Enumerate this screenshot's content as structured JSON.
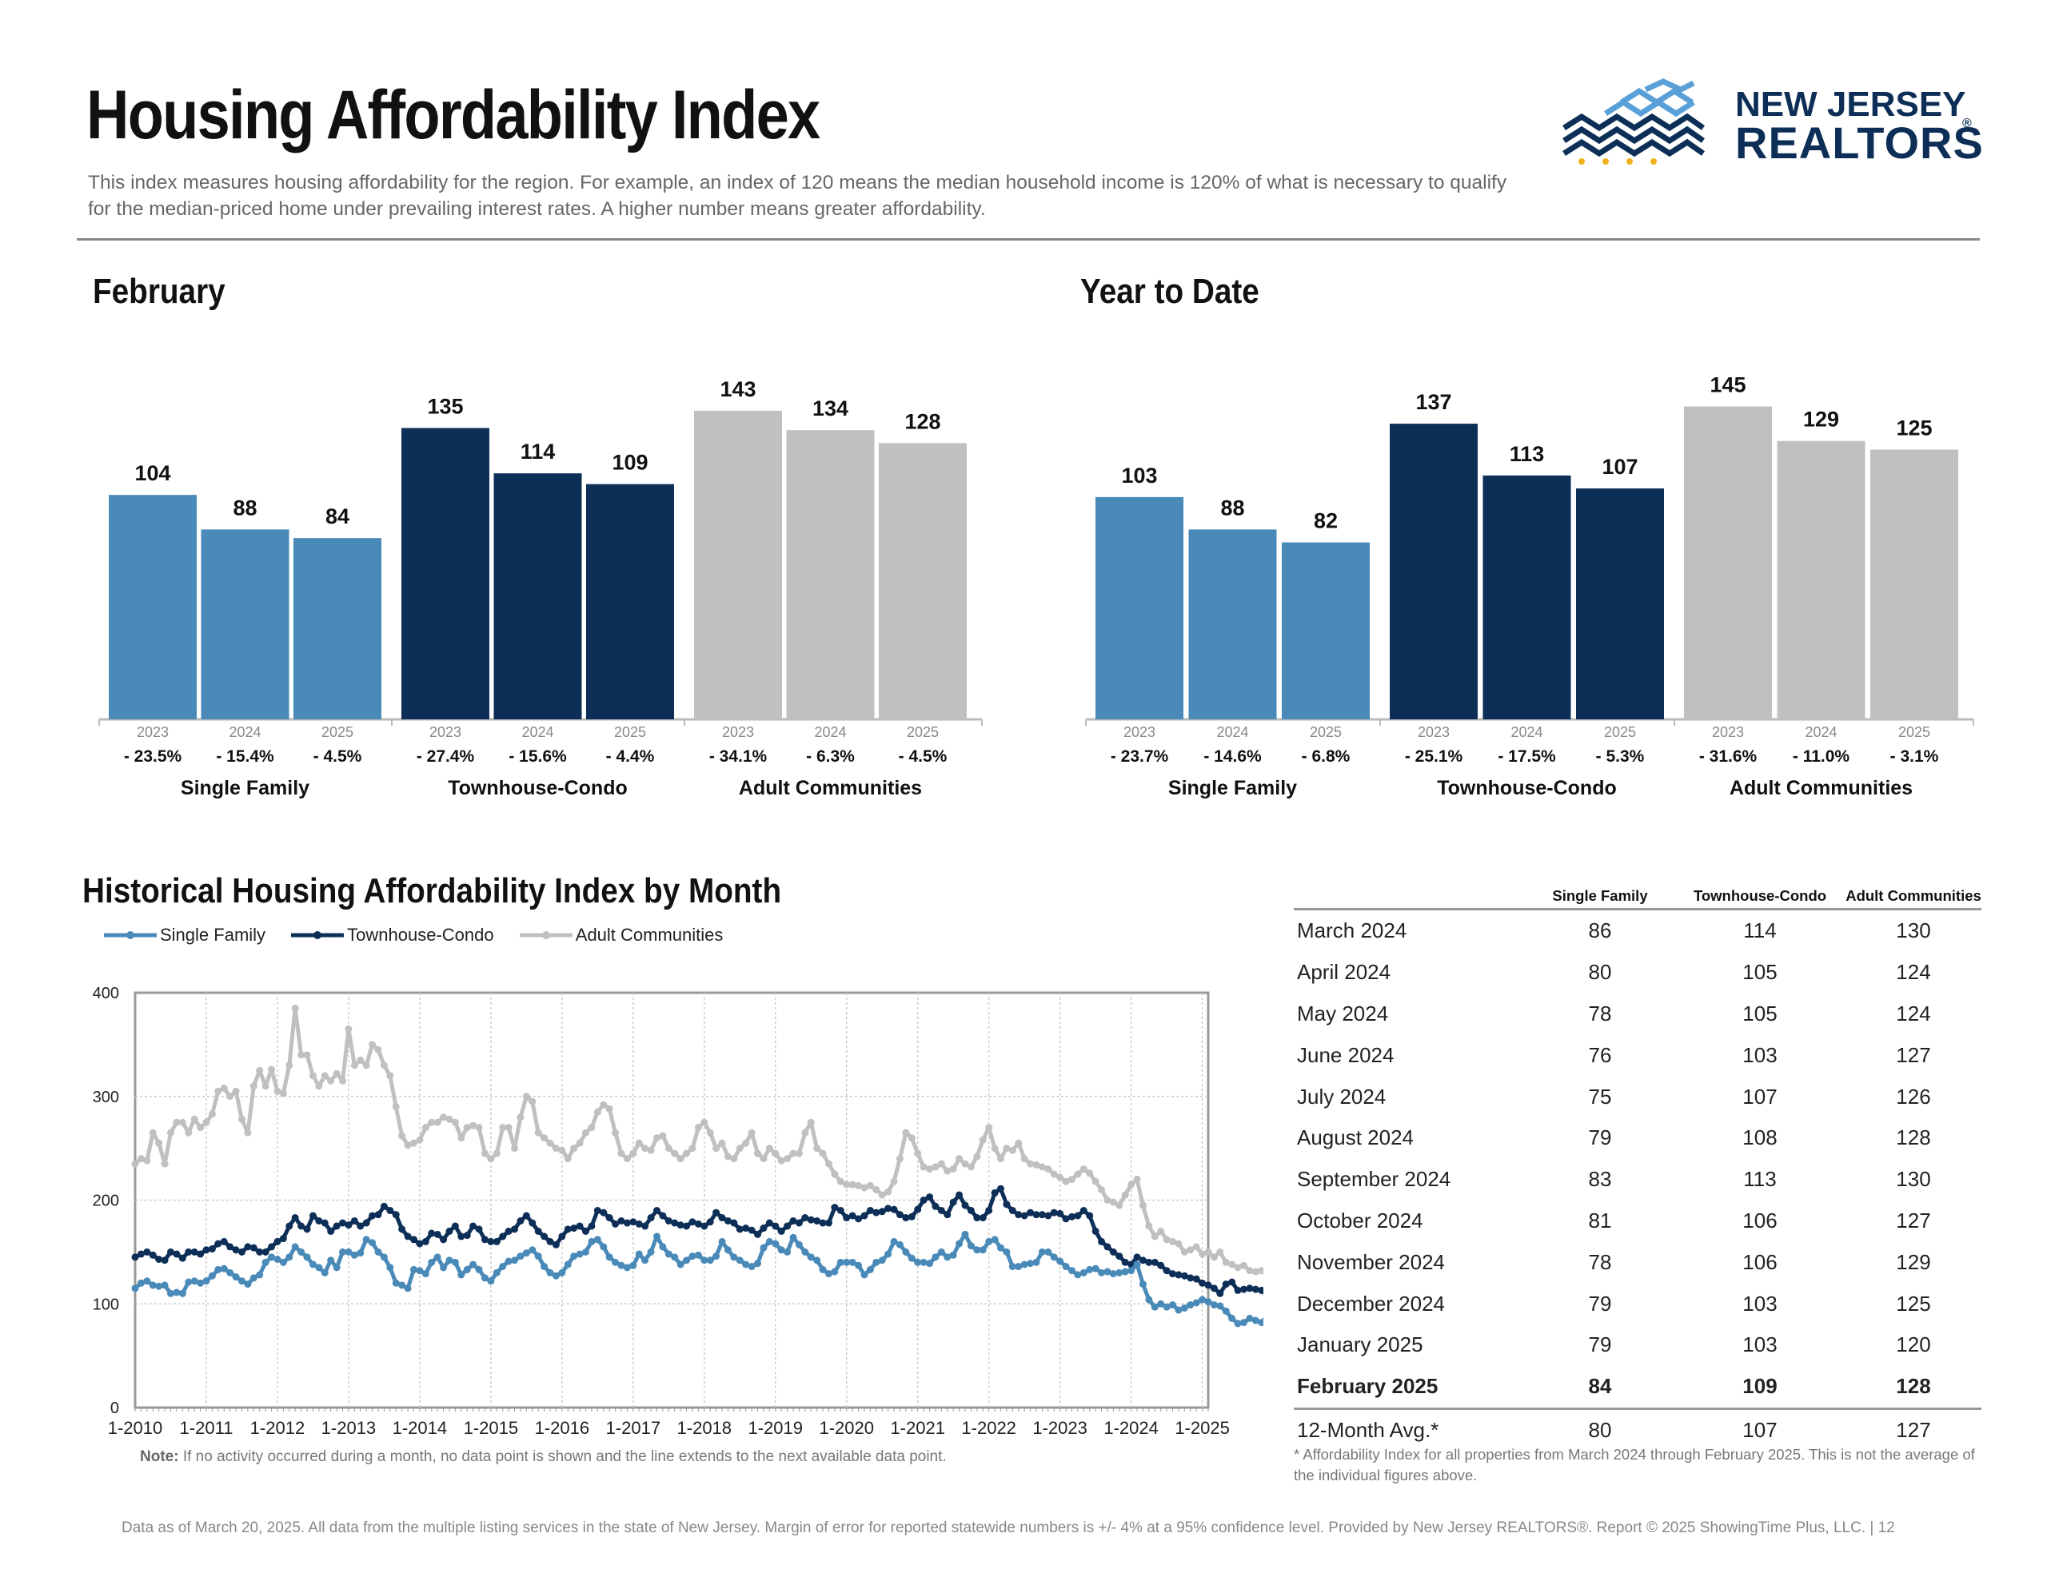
{
  "header": {
    "title": "Housing Affordability Index",
    "description": "This index measures housing affordability for the region. For example, an index of 120 means the median household income is 120% of what is necessary to qualify for the median-priced home under prevailing interest rates. A higher number means greater affordability."
  },
  "logo": {
    "line1": "NEW JERSEY",
    "line2": "REALTORS",
    "registered": "®"
  },
  "colors": {
    "single_family": "#4a8ab8",
    "townhouse_condo": "#0d2f57",
    "adult_communities": "#c0c0c0"
  },
  "chart_data": [
    {
      "type": "bar",
      "title": "February",
      "groups": [
        "Single Family",
        "Townhouse-Condo",
        "Adult Communities"
      ],
      "years": [
        "2023",
        "2024",
        "2025"
      ],
      "series": [
        {
          "name": "Single Family",
          "values": [
            104,
            88,
            84
          ],
          "changes": [
            "- 23.5%",
            "- 15.4%",
            "- 4.5%"
          ]
        },
        {
          "name": "Townhouse-Condo",
          "values": [
            135,
            114,
            109
          ],
          "changes": [
            "- 27.4%",
            "- 15.6%",
            "- 4.4%"
          ]
        },
        {
          "name": "Adult Communities",
          "values": [
            143,
            134,
            128
          ],
          "changes": [
            "- 34.1%",
            "- 6.3%",
            "- 4.5%"
          ]
        }
      ],
      "ylim": [
        0,
        160
      ]
    },
    {
      "type": "bar",
      "title": "Year to Date",
      "groups": [
        "Single Family",
        "Townhouse-Condo",
        "Adult Communities"
      ],
      "years": [
        "2023",
        "2024",
        "2025"
      ],
      "series": [
        {
          "name": "Single Family",
          "values": [
            103,
            88,
            82
          ],
          "changes": [
            "- 23.7%",
            "- 14.6%",
            "- 6.8%"
          ]
        },
        {
          "name": "Townhouse-Condo",
          "values": [
            137,
            113,
            107
          ],
          "changes": [
            "- 25.1%",
            "- 17.5%",
            "- 5.3%"
          ]
        },
        {
          "name": "Adult Communities",
          "values": [
            145,
            129,
            125
          ],
          "changes": [
            "- 31.6%",
            "- 11.0%",
            "- 3.1%"
          ]
        }
      ],
      "ylim": [
        0,
        160
      ]
    },
    {
      "type": "line",
      "title": "Historical Housing Affordability Index by Month",
      "x_ticks": [
        "1-2010",
        "1-2011",
        "1-2012",
        "1-2013",
        "1-2014",
        "1-2015",
        "1-2016",
        "1-2017",
        "1-2018",
        "1-2019",
        "1-2020",
        "1-2021",
        "1-2022",
        "1-2023",
        "1-2024",
        "1-2025"
      ],
      "y_ticks": [
        0,
        100,
        200,
        300,
        400
      ],
      "ylim": [
        0,
        400
      ],
      "x_start": "1-2010",
      "x_end": "2-2025",
      "grid": true,
      "legend_position": "top-left",
      "series": [
        {
          "name": "Single Family",
          "color": "#4a8ab8",
          "values": [
            115,
            120,
            122,
            118,
            117,
            118,
            110,
            111,
            110,
            121,
            122,
            120,
            122,
            127,
            133,
            134,
            130,
            126,
            122,
            119,
            125,
            128,
            140,
            145,
            143,
            140,
            145,
            155,
            150,
            145,
            138,
            135,
            130,
            142,
            135,
            150,
            150,
            147,
            149,
            162,
            159,
            150,
            145,
            135,
            120,
            118,
            115,
            133,
            132,
            129,
            140,
            145,
            135,
            142,
            140,
            128,
            133,
            138,
            133,
            125,
            122,
            130,
            136,
            141,
            142,
            146,
            149,
            152,
            146,
            136,
            130,
            127,
            130,
            138,
            146,
            148,
            150,
            160,
            162,
            155,
            145,
            140,
            137,
            135,
            137,
            148,
            142,
            150,
            165,
            155,
            148,
            145,
            138,
            142,
            146,
            147,
            142,
            142,
            146,
            160,
            152,
            145,
            142,
            138,
            136,
            139,
            154,
            160,
            158,
            152,
            150,
            164,
            157,
            150,
            145,
            142,
            133,
            129,
            131,
            140,
            140,
            140,
            137,
            128,
            133,
            140,
            142,
            148,
            160,
            157,
            150,
            144,
            140,
            140,
            139,
            145,
            150,
            145,
            147,
            158,
            167,
            156,
            152,
            152,
            160,
            162,
            154,
            150,
            136,
            136,
            138,
            139,
            140,
            150,
            150,
            145,
            141,
            136,
            132,
            128,
            130,
            133,
            134,
            130,
            131,
            129,
            130,
            131,
            132,
            138,
            119,
            104,
            97,
            100,
            97,
            99,
            94,
            96,
            99,
            101,
            104,
            102,
            99,
            98,
            93,
            86,
            81,
            82,
            86,
            84,
            82,
            89,
            89,
            86,
            83,
            80,
            78,
            75,
            76,
            75,
            79,
            83,
            81,
            78,
            79,
            79,
            84
          ]
        },
        {
          "name": "Townhouse-Condo",
          "color": "#0d2f57",
          "values": [
            145,
            148,
            150,
            147,
            143,
            142,
            150,
            148,
            144,
            150,
            150,
            148,
            152,
            153,
            158,
            160,
            155,
            152,
            150,
            155,
            154,
            150,
            150,
            155,
            160,
            163,
            175,
            183,
            175,
            172,
            185,
            180,
            178,
            170,
            175,
            178,
            176,
            180,
            175,
            178,
            185,
            186,
            194,
            190,
            186,
            172,
            165,
            162,
            158,
            160,
            168,
            167,
            162,
            170,
            175,
            165,
            166,
            175,
            172,
            162,
            160,
            160,
            165,
            170,
            172,
            180,
            185,
            178,
            170,
            165,
            160,
            157,
            165,
            172,
            173,
            175,
            170,
            175,
            190,
            188,
            183,
            177,
            180,
            178,
            179,
            177,
            175,
            183,
            190,
            185,
            180,
            178,
            176,
            175,
            179,
            177,
            175,
            179,
            188,
            183,
            180,
            178,
            172,
            173,
            171,
            167,
            173,
            178,
            175,
            170,
            175,
            180,
            178,
            183,
            181,
            180,
            178,
            178,
            193,
            190,
            183,
            185,
            182,
            185,
            190,
            188,
            189,
            192,
            191,
            186,
            183,
            184,
            191,
            200,
            203,
            194,
            190,
            186,
            198,
            205,
            195,
            190,
            183,
            183,
            190,
            207,
            211,
            196,
            190,
            186,
            185,
            188,
            186,
            186,
            185,
            188,
            187,
            182,
            184,
            185,
            190,
            185,
            170,
            160,
            155,
            150,
            146,
            140,
            138,
            145,
            142,
            140,
            140,
            137,
            132,
            129,
            128,
            127,
            125,
            124,
            120,
            118,
            115,
            110,
            119,
            121,
            113,
            114,
            115,
            114,
            113,
            108,
            107,
            105,
            108,
            107,
            113,
            106,
            106,
            103,
            103,
            109
          ]
        },
        {
          "name": "Adult Communities",
          "color": "#c0c0c0",
          "values": [
            235,
            240,
            238,
            265,
            255,
            235,
            265,
            275,
            275,
            265,
            278,
            270,
            275,
            283,
            305,
            308,
            300,
            305,
            278,
            265,
            310,
            325,
            310,
            326,
            305,
            303,
            330,
            385,
            340,
            340,
            320,
            310,
            320,
            315,
            322,
            315,
            365,
            330,
            335,
            330,
            350,
            345,
            330,
            320,
            290,
            262,
            253,
            255,
            258,
            270,
            275,
            275,
            280,
            278,
            275,
            260,
            270,
            272,
            270,
            245,
            240,
            245,
            270,
            270,
            250,
            280,
            300,
            295,
            265,
            260,
            255,
            250,
            248,
            240,
            250,
            255,
            265,
            270,
            285,
            292,
            288,
            265,
            245,
            240,
            245,
            255,
            250,
            248,
            260,
            262,
            250,
            245,
            240,
            245,
            250,
            270,
            275,
            265,
            250,
            255,
            242,
            240,
            250,
            255,
            265,
            245,
            240,
            250,
            245,
            238,
            240,
            245,
            245,
            265,
            275,
            250,
            245,
            235,
            225,
            218,
            215,
            215,
            214,
            212,
            214,
            210,
            205,
            208,
            218,
            240,
            265,
            260,
            245,
            232,
            230,
            232,
            235,
            228,
            230,
            240,
            235,
            232,
            242,
            258,
            270,
            250,
            240,
            250,
            248,
            255,
            240,
            235,
            234,
            232,
            230,
            225,
            222,
            218,
            220,
            225,
            230,
            226,
            218,
            210,
            200,
            198,
            195,
            205,
            215,
            220,
            195,
            175,
            165,
            170,
            162,
            160,
            158,
            150,
            152,
            155,
            148,
            150,
            145,
            150,
            140,
            138,
            135,
            137,
            132,
            131,
            132,
            127,
            125,
            124,
            124,
            125,
            124,
            128,
            127,
            130,
            125,
            123,
            124,
            127,
            129,
            125,
            120,
            128
          ]
        }
      ]
    }
  ],
  "historical_chart": {
    "note_label": "Note:",
    "note": "If no activity occurred during a month, no data point is shown and the line extends to the next available data point."
  },
  "table": {
    "headers": [
      "Single Family",
      "Townhouse-Condo",
      "Adult Communities"
    ],
    "rows": [
      {
        "label": "March 2024",
        "values": [
          "86",
          "114",
          "130"
        ]
      },
      {
        "label": "April 2024",
        "values": [
          "80",
          "105",
          "124"
        ]
      },
      {
        "label": "May 2024",
        "values": [
          "78",
          "105",
          "124"
        ]
      },
      {
        "label": "June 2024",
        "values": [
          "76",
          "103",
          "127"
        ]
      },
      {
        "label": "July 2024",
        "values": [
          "75",
          "107",
          "126"
        ]
      },
      {
        "label": "August 2024",
        "values": [
          "79",
          "108",
          "128"
        ]
      },
      {
        "label": "September 2024",
        "values": [
          "83",
          "113",
          "130"
        ]
      },
      {
        "label": "October 2024",
        "values": [
          "81",
          "106",
          "127"
        ]
      },
      {
        "label": "November 2024",
        "values": [
          "78",
          "106",
          "129"
        ]
      },
      {
        "label": "December 2024",
        "values": [
          "79",
          "103",
          "125"
        ]
      },
      {
        "label": "January 2025",
        "values": [
          "79",
          "103",
          "120"
        ]
      },
      {
        "label": "February 2025",
        "values": [
          "84",
          "109",
          "128"
        ],
        "bold": true
      }
    ],
    "avg_row": {
      "label": "12-Month Avg.*",
      "values": [
        "80",
        "107",
        "127"
      ]
    },
    "footnote": "* Affordability Index for all properties from March 2024 through February 2025. This is not the average of the individual figures above."
  },
  "footer": "Data as of March 20, 2025. All data from the multiple listing services in the state of New Jersey. Margin of error for reported statewide numbers is +/- 4% at a 95% confidence level. Provided by New Jersey REALTORS®. Report © 2025 ShowingTime Plus, LLC.  |  12"
}
